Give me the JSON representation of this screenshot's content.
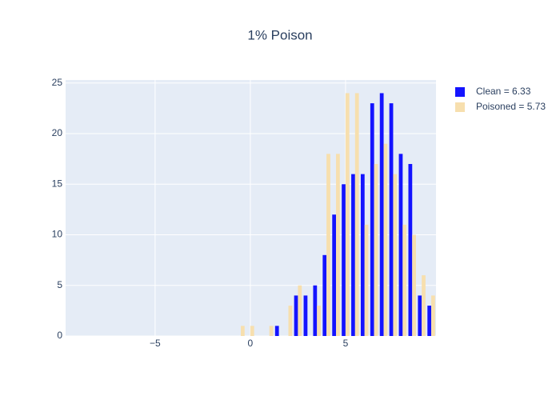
{
  "chart_data": {
    "type": "bar",
    "title": "1% Poison",
    "x": [
      -0.5,
      0,
      0.5,
      1,
      1.5,
      2,
      2.5,
      3,
      3.5,
      4,
      4.5,
      5,
      5.5,
      6,
      6.5,
      7,
      7.5,
      8,
      8.5,
      9,
      9.5
    ],
    "series": [
      {
        "name": "Clean = 6.33",
        "color": "#1414ff",
        "values": [
          0,
          0,
          0,
          0,
          1,
          0,
          4,
          4,
          5,
          8,
          12,
          15,
          16,
          16,
          23,
          24,
          23,
          18,
          17,
          4,
          3
        ]
      },
      {
        "name": "Poisoned = 5.73",
        "color": "#f7dfae",
        "values": [
          1,
          1,
          0,
          1,
          0,
          3,
          5,
          0,
          3,
          18,
          18,
          24,
          24,
          11,
          17,
          19,
          16,
          11,
          10,
          6,
          4
        ]
      }
    ],
    "xlim": [
      -9.7,
      9.75
    ],
    "xticks": [
      {
        "value": -5,
        "label": "−5"
      },
      0,
      5
    ],
    "ylim": [
      0,
      25.3
    ],
    "yticks": [
      0,
      5,
      10,
      15,
      20,
      25
    ],
    "grid": true,
    "legend": "top-right"
  }
}
